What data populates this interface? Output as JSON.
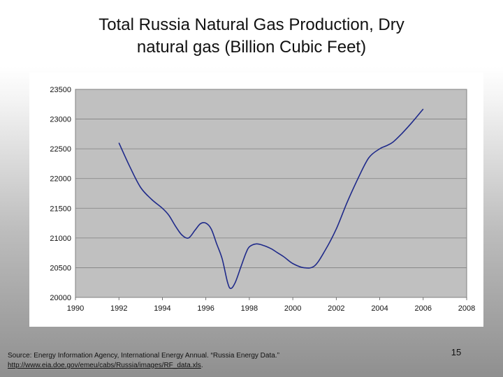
{
  "slide": {
    "title_line1": "Total Russia Natural Gas Production, Dry",
    "title_line2": "natural gas (Billion Cubic Feet)",
    "source_text": "Source: Energy Information Agency, International Energy Annual. “Russia Energy Data.”",
    "source_url": "http://www.eia.doe.gov/emeu/cabs/Russia/images/RF_data.xls",
    "source_url_suffix": ".",
    "page_number": "15"
  },
  "chart_data": {
    "type": "line",
    "title": "",
    "xlabel": "",
    "ylabel": "",
    "xlim": [
      1990,
      2008
    ],
    "ylim": [
      20000,
      23500
    ],
    "x_ticks": [
      "1990",
      "1992",
      "1994",
      "1996",
      "1998",
      "2000",
      "2002",
      "2004",
      "2006",
      "2008"
    ],
    "y_ticks": [
      "20000",
      "20500",
      "21000",
      "21500",
      "22000",
      "22500",
      "23000",
      "23500"
    ],
    "grid": true,
    "legend": "none",
    "plot_background": "#c0c0c0",
    "line_color": "#1f2a8a",
    "series": [
      {
        "x": [
          1992,
          1992.5,
          1993,
          1993.5,
          1994,
          1994.3,
          1994.6,
          1994.9,
          1995.2,
          1995.5,
          1995.75,
          1996,
          1996.25,
          1996.5,
          1996.75,
          1997,
          1997.15,
          1997.35,
          1997.6,
          1997.85,
          1998,
          1998.3,
          1998.6,
          1999,
          1999.3,
          1999.6,
          2000,
          2000.5,
          2001,
          2001.5,
          2002,
          2002.5,
          2003,
          2003.5,
          2004,
          2004.3,
          2004.6,
          2005,
          2005.5,
          2006
        ],
        "y": [
          22600,
          22200,
          21850,
          21650,
          21500,
          21380,
          21200,
          21050,
          21000,
          21130,
          21240,
          21250,
          21150,
          20900,
          20650,
          20250,
          20150,
          20250,
          20500,
          20750,
          20850,
          20900,
          20880,
          20820,
          20750,
          20680,
          20570,
          20500,
          20530,
          20800,
          21150,
          21600,
          22000,
          22350,
          22500,
          22550,
          22610,
          22750,
          22950,
          23170
        ]
      }
    ]
  }
}
